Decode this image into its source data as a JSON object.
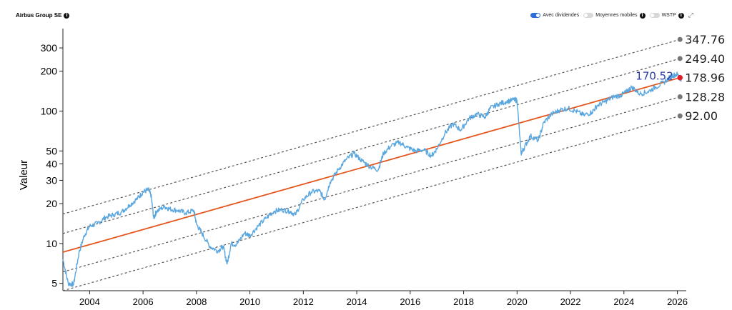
{
  "header": {
    "title": "Airbus Group SE",
    "controls": [
      {
        "label": "Avec dividendes",
        "on": true
      },
      {
        "label": "Moyennes mobiles",
        "on": false,
        "info": true
      },
      {
        "label": "WSTP",
        "on": false,
        "info": true
      }
    ]
  },
  "colors": {
    "price": "#5aa7e0",
    "trend": "#e5561f",
    "band": "#555555",
    "band_marker": "#777777",
    "last_marker": "#e01f2a",
    "last_label": "#2b3aa8"
  },
  "chart_data": {
    "type": "line",
    "ylabel": "Valeur",
    "y_scale": "log",
    "ylim": [
      4.4,
      420
    ],
    "xlim": [
      2003.0,
      2026.2
    ],
    "yticks": [
      5,
      10,
      20,
      30,
      40,
      50,
      100,
      200,
      300
    ],
    "xticks": [
      2004,
      2006,
      2008,
      2010,
      2012,
      2014,
      2016,
      2018,
      2020,
      2022,
      2024,
      2026
    ],
    "last_value": {
      "x": 2025.9,
      "y": 170.52,
      "label": "170.52"
    },
    "trend": {
      "name": "trend",
      "start": {
        "x": 2003.0,
        "y": 8.6
      },
      "end": {
        "x": 2026.1,
        "y": 178.96
      },
      "end_label": "178.96"
    },
    "bands": [
      {
        "start": 16.7,
        "end": 347.76,
        "label": "347.76"
      },
      {
        "start": 11.9,
        "end": 249.4,
        "label": "249.40"
      },
      {
        "start": 6.1,
        "end": 128.28,
        "label": "128.28"
      },
      {
        "start": 4.4,
        "end": 92.0,
        "label": "92.00"
      }
    ],
    "series": [
      {
        "x": [
          2003.0,
          2003.2,
          2003.4,
          2003.6,
          2003.8,
          2004.0,
          2004.3,
          2004.6,
          2004.9,
          2005.2,
          2005.5,
          2005.8,
          2006.0,
          2006.2,
          2006.3,
          2006.4,
          2006.5,
          2006.8,
          2007.0,
          2007.3,
          2007.6,
          2007.9,
          2008.0,
          2008.2,
          2008.5,
          2008.8,
          2009.0,
          2009.15,
          2009.3,
          2009.5,
          2009.8,
          2010.0,
          2010.3,
          2010.6,
          2010.9,
          2011.2,
          2011.5,
          2011.7,
          2012.0,
          2012.3,
          2012.6,
          2012.8,
          2013.0,
          2013.3,
          2013.6,
          2013.9,
          2014.2,
          2014.5,
          2014.8,
          2015.0,
          2015.3,
          2015.6,
          2015.9,
          2016.2,
          2016.5,
          2016.8,
          2017.0,
          2017.3,
          2017.6,
          2017.9,
          2018.2,
          2018.5,
          2018.8,
          2019.0,
          2019.3,
          2019.6,
          2019.9,
          2020.0,
          2020.15,
          2020.25,
          2020.5,
          2020.8,
          2021.0,
          2021.3,
          2021.6,
          2021.9,
          2022.2,
          2022.5,
          2022.8,
          2023.0,
          2023.3,
          2023.6,
          2023.9,
          2024.1,
          2024.3,
          2024.6,
          2024.9,
          2025.2,
          2025.5,
          2025.8,
          2026.0,
          2026.15
        ],
        "y": [
          7.6,
          5.0,
          4.9,
          8.5,
          11.5,
          13.5,
          14.2,
          15.8,
          16.5,
          17.3,
          19.5,
          22.0,
          24.5,
          25.5,
          23.0,
          15.5,
          17.5,
          19.0,
          18.2,
          17.8,
          17.0,
          17.8,
          14.0,
          12.0,
          9.5,
          8.8,
          9.5,
          7.0,
          10.0,
          9.8,
          12.0,
          11.5,
          13.5,
          15.5,
          17.5,
          18.0,
          17.5,
          16.5,
          21.5,
          24.5,
          25.0,
          21.5,
          29.0,
          36.0,
          43.0,
          48.0,
          42.0,
          38.0,
          36.0,
          48.0,
          55.0,
          58.0,
          53.0,
          50.0,
          51.0,
          46.0,
          52.0,
          68.0,
          80.0,
          72.0,
          88.0,
          95.0,
          90.0,
          105.0,
          113.0,
          118.0,
          122.0,
          120.0,
          48.0,
          52.0,
          65.0,
          60.0,
          82.0,
          95.0,
          102.0,
          105.0,
          100.0,
          93.0,
          98.0,
          110.0,
          118.0,
          128.0,
          132.0,
          140.0,
          152.0,
          135.0,
          140.0,
          152.0,
          165.0,
          185.0,
          190.0,
          170.52
        ]
      }
    ]
  }
}
